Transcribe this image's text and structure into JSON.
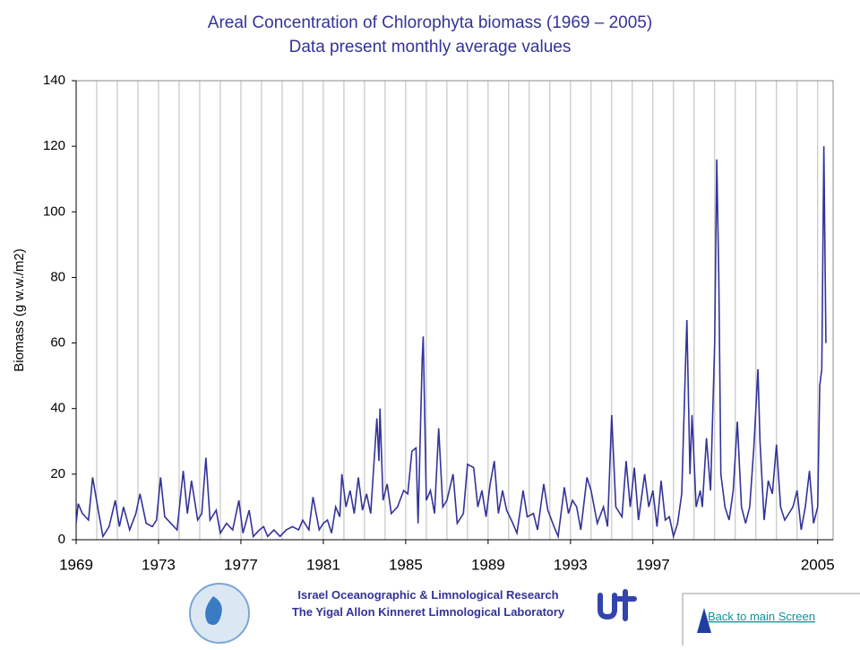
{
  "chart_data": {
    "type": "line",
    "title": "Areal Concentration of Chlorophyta biomass (1969 – 2005)",
    "subtitle": "Data present monthly average values",
    "y_label": "Biomass (g w.w./m2)",
    "xlim": [
      1969,
      2005.75
    ],
    "xticks": [
      1969,
      1973,
      1977,
      1981,
      1985,
      1989,
      1993,
      1997,
      2005
    ],
    "xgrid": [
      1970,
      1971,
      1972,
      1973,
      1974,
      1975,
      1976,
      1977,
      1978,
      1979,
      1980,
      1981,
      1982,
      1983,
      1984,
      1985,
      1986,
      1987,
      1988,
      1989,
      1990,
      1991,
      1992,
      1993,
      1994,
      1995,
      1996,
      1997,
      1998,
      1999,
      2000,
      2001,
      2002,
      2003,
      2004,
      2005
    ],
    "ylim": [
      0,
      140
    ],
    "yticks": [
      0,
      20,
      40,
      60,
      80,
      100,
      120,
      140
    ],
    "series": [
      {
        "color": "#333399",
        "x": [
          1969.0,
          1969.1,
          1969.3,
          1969.6,
          1969.8,
          1970.1,
          1970.3,
          1970.6,
          1970.9,
          1971.1,
          1971.3,
          1971.6,
          1971.9,
          1972.1,
          1972.4,
          1972.7,
          1972.9,
          1973.1,
          1973.3,
          1973.6,
          1973.9,
          1974.2,
          1974.4,
          1974.6,
          1974.9,
          1975.1,
          1975.3,
          1975.5,
          1975.8,
          1976.0,
          1976.3,
          1976.6,
          1976.9,
          1977.1,
          1977.4,
          1977.6,
          1977.9,
          1978.1,
          1978.3,
          1978.6,
          1978.9,
          1979.2,
          1979.5,
          1979.8,
          1980.0,
          1980.3,
          1980.5,
          1980.8,
          1981.0,
          1981.2,
          1981.4,
          1981.6,
          1981.8,
          1981.9,
          1982.1,
          1982.3,
          1982.5,
          1982.7,
          1982.9,
          1983.1,
          1983.3,
          1983.6,
          1983.7,
          1983.75,
          1983.9,
          1984.1,
          1984.3,
          1984.6,
          1984.9,
          1985.1,
          1985.3,
          1985.5,
          1985.6,
          1985.8,
          1985.85,
          1986.0,
          1986.2,
          1986.4,
          1986.6,
          1986.8,
          1987.0,
          1987.3,
          1987.5,
          1987.8,
          1988.0,
          1988.3,
          1988.5,
          1988.7,
          1988.9,
          1989.1,
          1989.3,
          1989.5,
          1989.7,
          1989.9,
          1990.2,
          1990.4,
          1990.7,
          1990.9,
          1991.2,
          1991.4,
          1991.7,
          1991.9,
          1992.2,
          1992.4,
          1992.7,
          1992.9,
          1993.1,
          1993.3,
          1993.5,
          1993.8,
          1994.0,
          1994.3,
          1994.6,
          1994.8,
          1995.0,
          1995.2,
          1995.5,
          1995.7,
          1995.9,
          1996.1,
          1996.3,
          1996.6,
          1996.8,
          1997.0,
          1997.2,
          1997.4,
          1997.6,
          1997.8,
          1998.0,
          1998.2,
          1998.4,
          1998.6,
          1998.65,
          1998.8,
          1998.9,
          1999.1,
          1999.3,
          1999.4,
          1999.6,
          1999.8,
          2000.0,
          2000.1,
          2000.2,
          2000.3,
          2000.5,
          2000.7,
          2000.9,
          2001.1,
          2001.3,
          2001.5,
          2001.7,
          2001.9,
          2002.1,
          2002.2,
          2002.4,
          2002.6,
          2002.8,
          2003.0,
          2003.2,
          2003.4,
          2003.6,
          2003.8,
          2004.0,
          2004.2,
          2004.4,
          2004.6,
          2004.8,
          2005.0,
          2005.1,
          2005.2,
          2005.3,
          2005.4
        ],
        "values": [
          5,
          11,
          8,
          6,
          19,
          8,
          1,
          4,
          12,
          4,
          10,
          3,
          8,
          14,
          5,
          4,
          6,
          19,
          7,
          5,
          3,
          21,
          8,
          18,
          6,
          8,
          25,
          6,
          9,
          2,
          5,
          3,
          12,
          2,
          9,
          1,
          3,
          4,
          1,
          3,
          1,
          3,
          4,
          3,
          6,
          3,
          13,
          3,
          5,
          6,
          2,
          10,
          7,
          20,
          10,
          15,
          8,
          19,
          9,
          14,
          8,
          37,
          24,
          40,
          12,
          17,
          8,
          10,
          15,
          14,
          27,
          28,
          5,
          55,
          62,
          12,
          15,
          8,
          34,
          10,
          12,
          20,
          5,
          8,
          23,
          22,
          10,
          15,
          7,
          17,
          24,
          8,
          15,
          9,
          5,
          2,
          15,
          7,
          8,
          3,
          17,
          9,
          4,
          1,
          16,
          8,
          12,
          10,
          3,
          19,
          15,
          5,
          10,
          4,
          38,
          10,
          7,
          24,
          10,
          22,
          6,
          20,
          10,
          15,
          4,
          18,
          6,
          7,
          1,
          5,
          14,
          57,
          67,
          20,
          38,
          10,
          15,
          10,
          31,
          15,
          60,
          116,
          80,
          20,
          10,
          6,
          15,
          36,
          10,
          5,
          10,
          28,
          52,
          30,
          6,
          18,
          14,
          29,
          10,
          6,
          8,
          10,
          15,
          3,
          10,
          21,
          5,
          10,
          47,
          52,
          120,
          60
        ]
      }
    ]
  },
  "footer": {
    "line1": "Israel Oceanographic & Limnological Research",
    "line2": "The Yigal Allon Kinneret Limnological Laboratory",
    "link": "Back to main Screen"
  }
}
